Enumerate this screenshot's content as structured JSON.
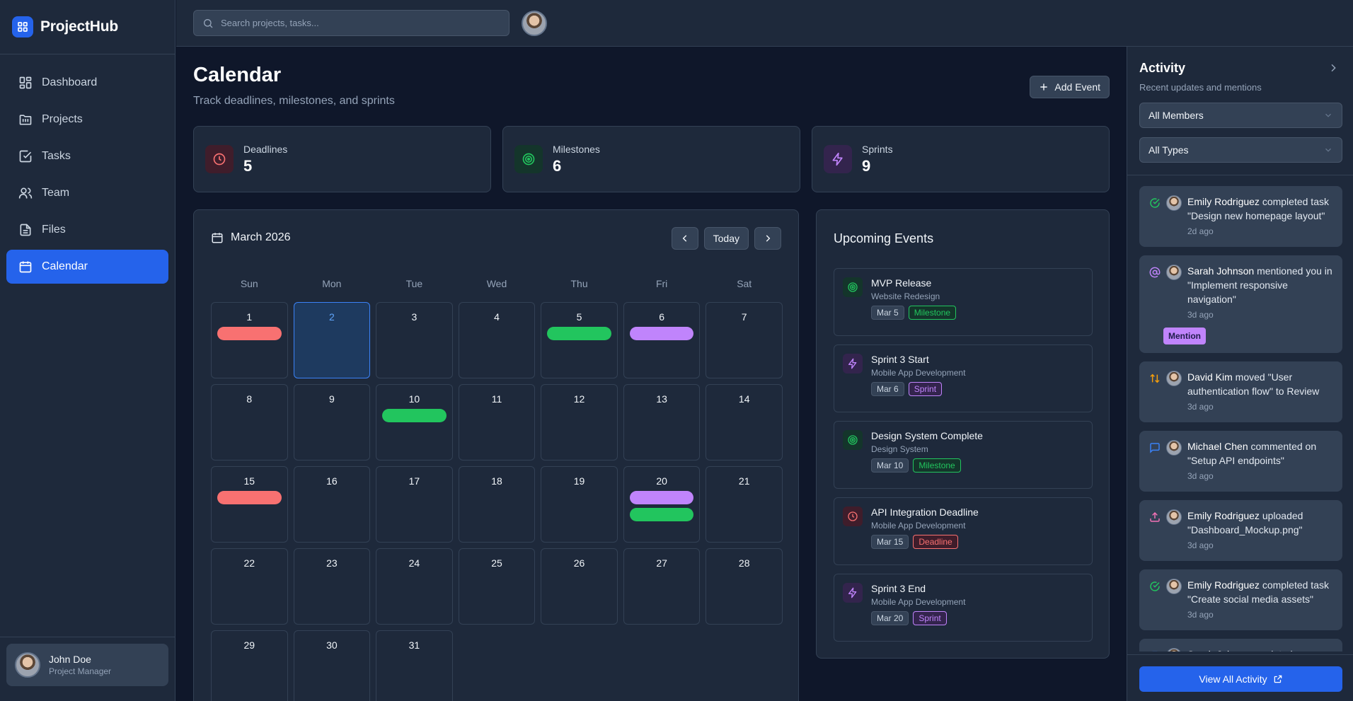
{
  "app": {
    "name": "ProjectHub"
  },
  "sidebar": {
    "items": [
      {
        "label": "Dashboard",
        "icon": "dashboard-icon"
      },
      {
        "label": "Projects",
        "icon": "folder-icon"
      },
      {
        "label": "Tasks",
        "icon": "checkbox-icon"
      },
      {
        "label": "Team",
        "icon": "users-icon"
      },
      {
        "label": "Files",
        "icon": "file-icon"
      },
      {
        "label": "Calendar",
        "icon": "calendar-icon",
        "active": true
      }
    ],
    "user": {
      "name": "John Doe",
      "role": "Project Manager"
    }
  },
  "topbar": {
    "search_placeholder": "Search projects, tasks..."
  },
  "page": {
    "title": "Calendar",
    "subtitle": "Track deadlines, milestones, and sprints",
    "add_event_label": "Add Event"
  },
  "stats": [
    {
      "label": "Deadlines",
      "value": "5",
      "icon": "clock-icon",
      "color": "#f87171",
      "bg": "#3f1d2b"
    },
    {
      "label": "Milestones",
      "value": "6",
      "icon": "target-icon",
      "color": "#22c55e",
      "bg": "#14352b"
    },
    {
      "label": "Sprints",
      "value": "9",
      "icon": "lightning-icon",
      "color": "#c084fc",
      "bg": "#33244d"
    }
  ],
  "calendar": {
    "month_label": "March 2026",
    "today_label": "Today",
    "weekdays": [
      "Sun",
      "Mon",
      "Tue",
      "Wed",
      "Thu",
      "Fri",
      "Sat"
    ],
    "selected_day": 2,
    "days_in_month": 31,
    "event_colors": {
      "deadline": "#f87171",
      "milestone": "#22c55e",
      "sprint": "#c084fc"
    },
    "events_by_day": {
      "1": [
        "deadline"
      ],
      "5": [
        "milestone"
      ],
      "6": [
        "sprint"
      ],
      "10": [
        "milestone"
      ],
      "15": [
        "deadline"
      ],
      "20": [
        "sprint",
        "milestone"
      ]
    }
  },
  "upcoming": {
    "title": "Upcoming Events",
    "items": [
      {
        "title": "MVP Release",
        "project": "Website Redesign",
        "date": "Mar 5",
        "type": "Milestone",
        "kind": "milestone"
      },
      {
        "title": "Sprint 3 Start",
        "project": "Mobile App Development",
        "date": "Mar 6",
        "type": "Sprint",
        "kind": "sprint"
      },
      {
        "title": "Design System Complete",
        "project": "Design System",
        "date": "Mar 10",
        "type": "Milestone",
        "kind": "milestone"
      },
      {
        "title": "API Integration Deadline",
        "project": "Mobile App Development",
        "date": "Mar 15",
        "type": "Deadline",
        "kind": "deadline"
      },
      {
        "title": "Sprint 3 End",
        "project": "Mobile App Development",
        "date": "Mar 20",
        "type": "Sprint",
        "kind": "sprint"
      }
    ]
  },
  "activity": {
    "title": "Activity",
    "subtitle": "Recent updates and mentions",
    "filter_members": "All Members",
    "filter_types": "All Types",
    "items": [
      {
        "icon": "check-circle-icon",
        "color": "#22c55e",
        "who": "Emily Rodriguez",
        "text": " completed task \"Design new homepage layout\"",
        "time": "2d ago"
      },
      {
        "icon": "at-sign-icon",
        "color": "#c084fc",
        "who": "Sarah Johnson",
        "text": " mentioned you in \"Implement responsive navigation\"",
        "time": "3d ago",
        "badge": "Mention"
      },
      {
        "icon": "arrows-updown-icon",
        "color": "#f59e0b",
        "who": "David Kim",
        "text": " moved \"User authentication flow\" to Review",
        "time": "3d ago"
      },
      {
        "icon": "comment-icon",
        "color": "#3b82f6",
        "who": "Michael Chen",
        "text": " commented on \"Setup API endpoints\"",
        "time": "3d ago"
      },
      {
        "icon": "upload-icon",
        "color": "#f472b6",
        "who": "Emily Rodriguez",
        "text": " uploaded \"Dashboard_Mockup.png\"",
        "time": "3d ago"
      },
      {
        "icon": "check-circle-icon",
        "color": "#22c55e",
        "who": "Emily Rodriguez",
        "text": " completed task \"Create social media assets\"",
        "time": "3d ago"
      },
      {
        "icon": "briefcase-icon",
        "color": "#3b82f6",
        "who": "Sarah Johnson",
        "text": " updated progress",
        "time": ""
      }
    ],
    "view_all_label": "View All Activity"
  }
}
